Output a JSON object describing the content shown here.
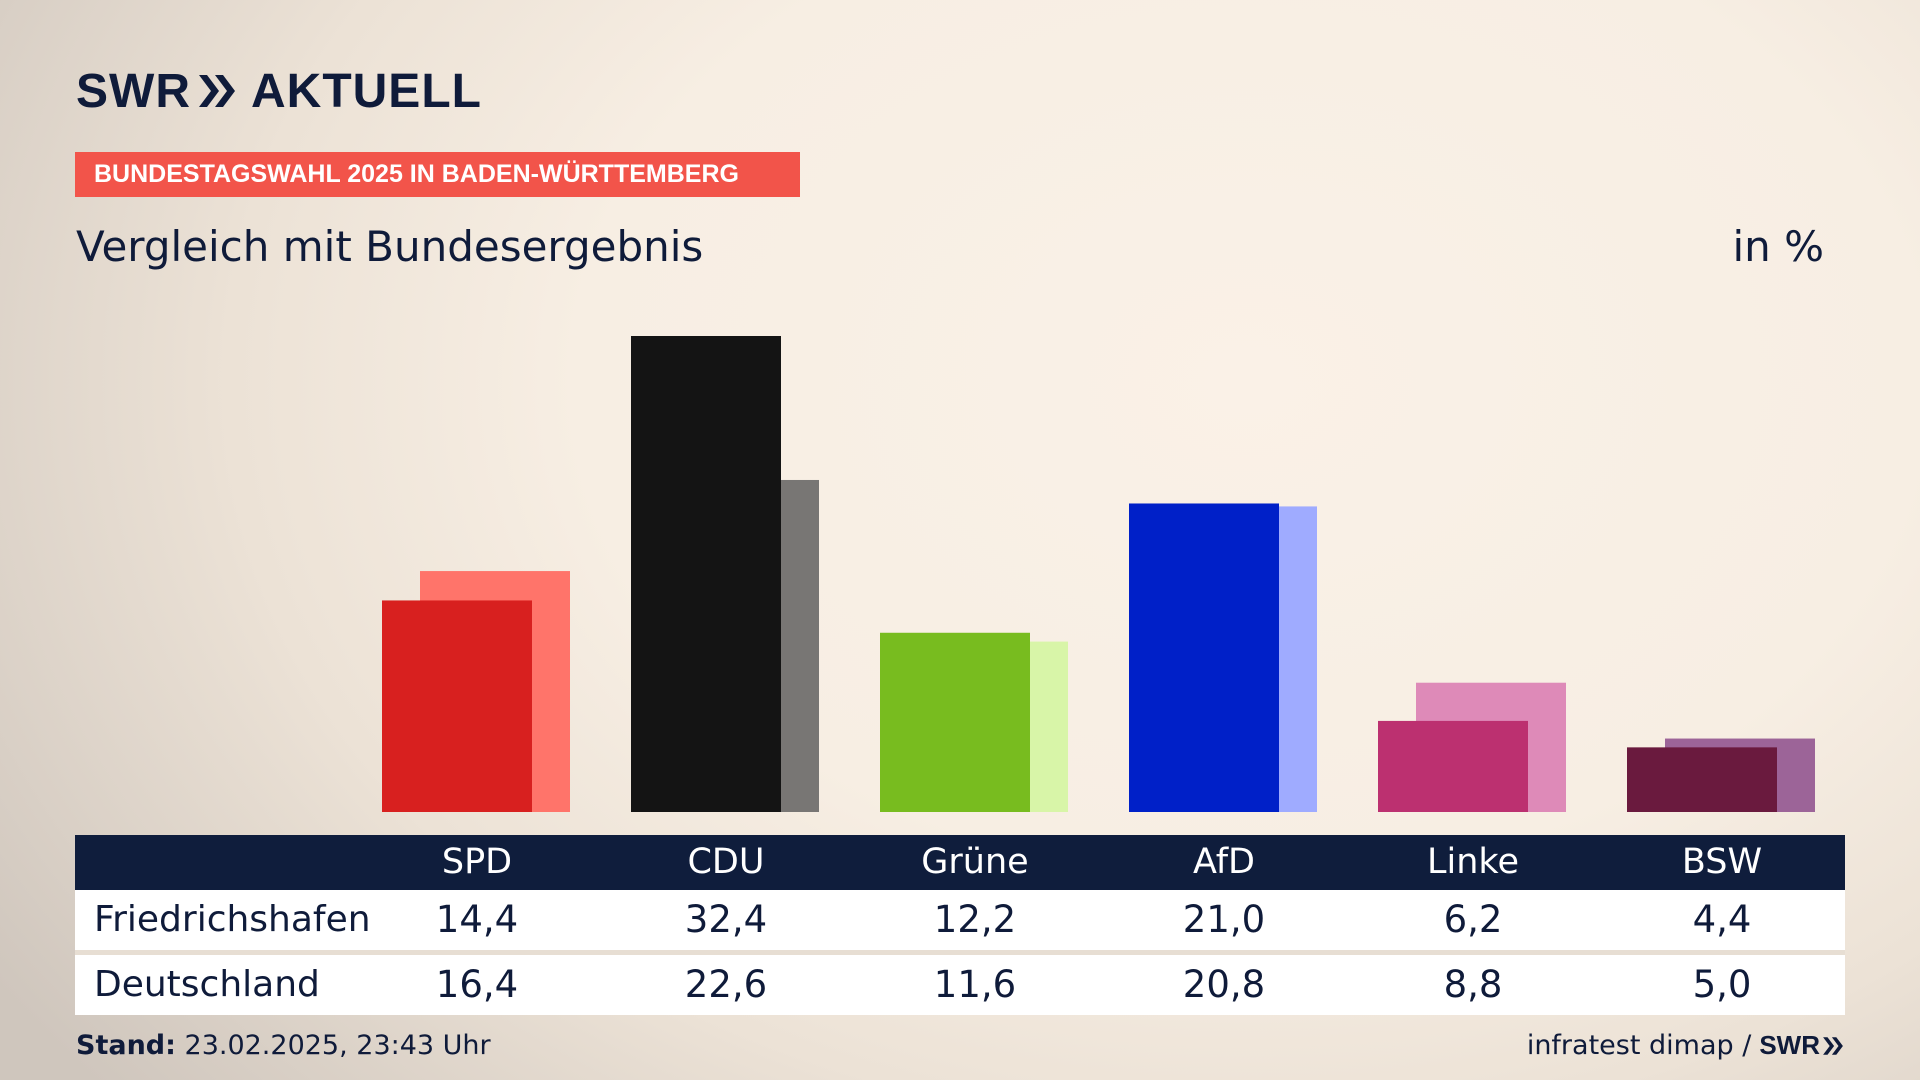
{
  "brand": {
    "logo_text_left": "SWR",
    "logo_text_right": "AKTUELL",
    "logo_small": "SWR",
    "accent_color": "#f2544a",
    "navy_color": "#0f1b3a"
  },
  "header": {
    "topic": "BUNDESTAGSWAHL 2025 IN BADEN-WÜRTTEMBERG",
    "subtitle": "Vergleich mit Bundesergebnis",
    "unit": "in %"
  },
  "chart_data": {
    "type": "bar",
    "categories": [
      "SPD",
      "CDU",
      "Grüne",
      "AfD",
      "Linke",
      "BSW"
    ],
    "series": [
      {
        "name": "Friedrichshafen",
        "values": [
          14.4,
          32.4,
          12.2,
          21.0,
          6.2,
          4.4
        ],
        "colors": [
          "#d8201f",
          "#141414",
          "#78bc1f",
          "#0020c8",
          "#bc3070",
          "#6a1a3e"
        ]
      },
      {
        "name": "Deutschland",
        "values": [
          16.4,
          22.6,
          11.6,
          20.8,
          8.8,
          5.0
        ],
        "colors": [
          "#ff746a",
          "#787674",
          "#d8f5a8",
          "#9fabff",
          "#de8ab8",
          "#9c6498"
        ]
      }
    ],
    "ylim": [
      0,
      32.4
    ],
    "grid": false
  },
  "table": {
    "headers": [
      "SPD",
      "CDU",
      "Grüne",
      "AfD",
      "Linke",
      "BSW"
    ],
    "rows": [
      {
        "label": "Friedrichshafen",
        "values": [
          "14,4",
          "32,4",
          "12,2",
          "21,0",
          "6,2",
          "4,4"
        ]
      },
      {
        "label": "Deutschland",
        "values": [
          "16,4",
          "22,6",
          "11,6",
          "20,8",
          "8,8",
          "5,0"
        ]
      }
    ]
  },
  "footer": {
    "stand_label": "Stand:",
    "stand_value": "23.02.2025, 23:43 Uhr",
    "source": "infratest dimap /"
  }
}
